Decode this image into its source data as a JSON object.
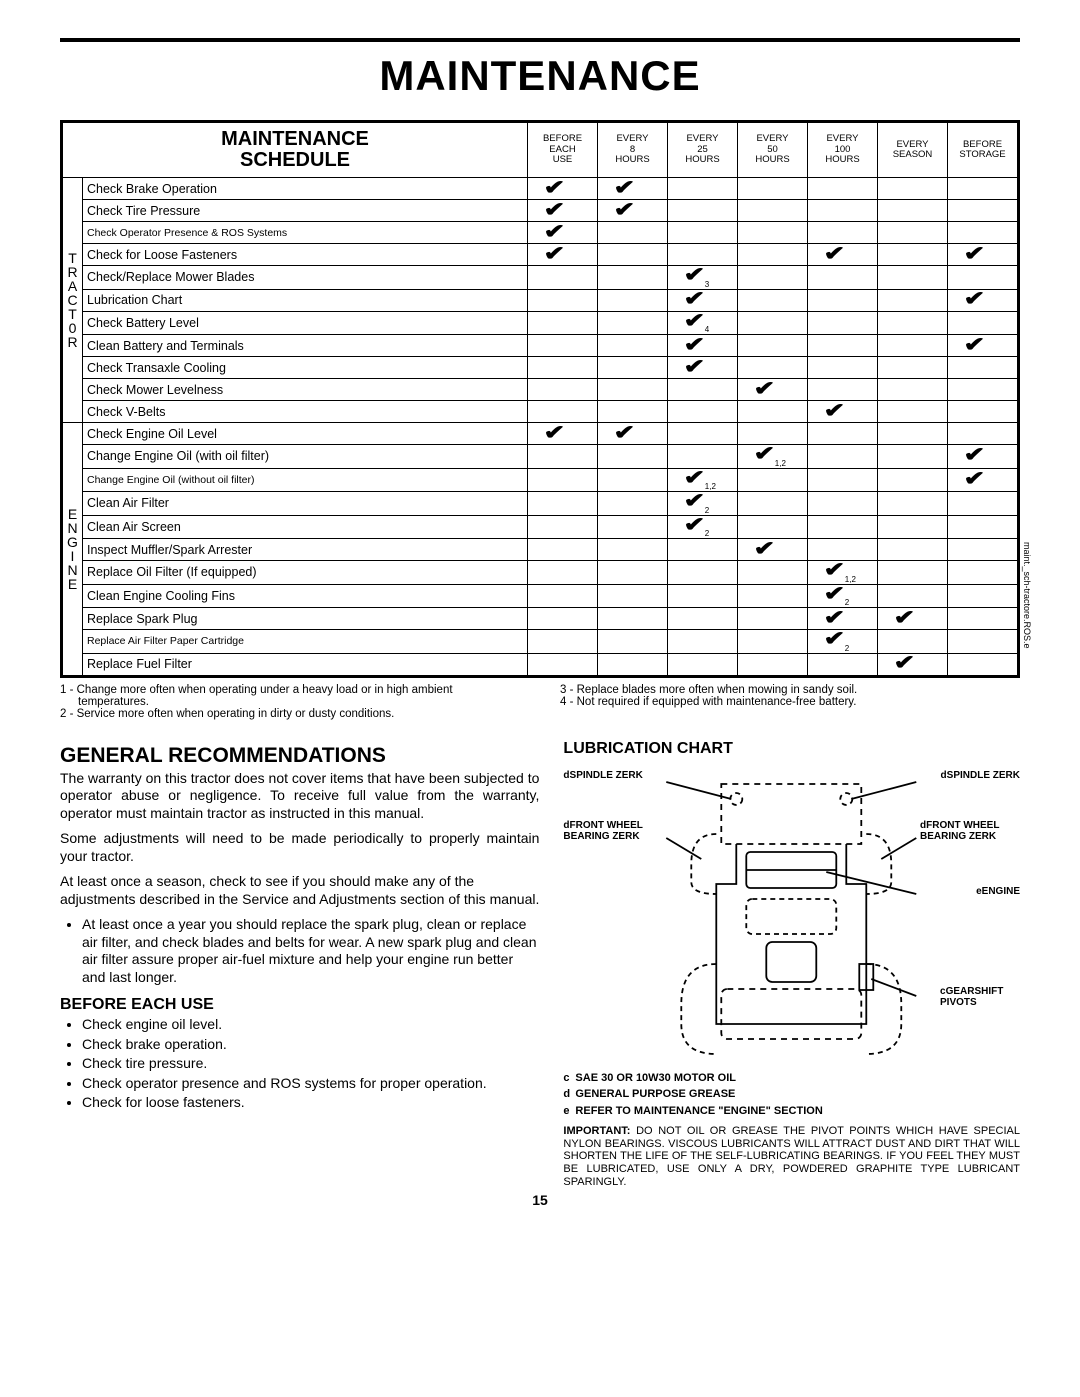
{
  "page": {
    "title": "MAINTENANCE",
    "number": "15"
  },
  "schedule": {
    "heading_l1": "MAINTENANCE",
    "heading_l2": "SCHEDULE",
    "columns": [
      "BEFORE\nEACH\nUSE",
      "EVERY\n8\nHOURS",
      "EVERY\n25\nHOURS",
      "EVERY\n50\nHOURS",
      "EVERY\n100\nHOURS",
      "EVERY\nSEASON",
      "BEFORE\nSTORAGE"
    ],
    "groups": [
      {
        "label": "T\nR\nA\nC\nT\n0\nR",
        "rows": [
          {
            "item": "Check Brake Operation",
            "marks": [
              0,
              1
            ]
          },
          {
            "item": "Check Tire Pressure",
            "marks": [
              0,
              1
            ]
          },
          {
            "item": "Check Operator Presence & ROS Systems",
            "small": true,
            "marks": [
              0
            ]
          },
          {
            "item": "Check for Loose Fasteners",
            "marks": [
              0,
              4,
              6
            ]
          },
          {
            "item": "Check/Replace Mower Blades",
            "marks": [
              2
            ],
            "notes": {
              "2": "3"
            }
          },
          {
            "item": "Lubrication Chart",
            "marks": [
              2,
              6
            ]
          },
          {
            "item": "Check Battery Level",
            "marks": [
              2
            ],
            "notes": {
              "2": "4"
            }
          },
          {
            "item": "Clean Battery and Terminals",
            "marks": [
              2,
              6
            ]
          },
          {
            "item": "Check Transaxle Cooling",
            "marks": [
              2
            ]
          },
          {
            "item": "Check Mower Levelness",
            "marks": [
              3
            ]
          },
          {
            "item": "Check V-Belts",
            "marks": [
              4
            ]
          }
        ]
      },
      {
        "label": "E\nN\nG\nI\nN\nE",
        "rows": [
          {
            "item": "Check Engine Oil Level",
            "marks": [
              0,
              1
            ]
          },
          {
            "item": "Change Engine Oil (with oil filter)",
            "marks": [
              3,
              6
            ],
            "notes": {
              "3": "1,2"
            }
          },
          {
            "item": "Change Engine Oil (without oil filter)",
            "small": true,
            "marks": [
              2,
              6
            ],
            "notes": {
              "2": "1,2"
            }
          },
          {
            "item": "Clean Air Filter",
            "marks": [
              2
            ],
            "notes": {
              "2": "2"
            }
          },
          {
            "item": "Clean Air Screen",
            "marks": [
              2
            ],
            "notes": {
              "2": "2"
            }
          },
          {
            "item": "Inspect Muffler/Spark Arrester",
            "marks": [
              3
            ]
          },
          {
            "item": "Replace Oil Filter (If equipped)",
            "marks": [
              4
            ],
            "notes": {
              "4": "1,2"
            }
          },
          {
            "item": "Clean Engine Cooling Fins",
            "marks": [
              4
            ],
            "notes": {
              "4": "2"
            }
          },
          {
            "item": "Replace Spark Plug",
            "marks": [
              4,
              5
            ]
          },
          {
            "item": "Replace Air Filter Paper Cartridge",
            "small": true,
            "marks": [
              4
            ],
            "notes": {
              "4": "2"
            }
          },
          {
            "item": "Replace Fuel Filter",
            "marks": [
              5
            ]
          }
        ]
      }
    ],
    "side_text": "maint._sch-tractore.ROS.e"
  },
  "footnotes": {
    "left": [
      "1 - Change more often when operating under a heavy load or in high ambient temperatures.",
      "2 - Service more often when operating in dirty or dusty conditions."
    ],
    "right": [
      "3 - Replace blades more often when mowing in sandy soil.",
      "4 - Not required if equipped with maintenance-free battery."
    ]
  },
  "general": {
    "heading": "GENERAL RECOMMENDATIONS",
    "p1": "The warranty on this tractor does not cover items that have been subjected to operator abuse or negligence. To receive full value from the warranty, operator must maintain tractor as instructed in this manual.",
    "p2": "Some adjustments will need to be made periodically to properly maintain your tractor.",
    "p3": "At least once a season, check to see if you should make any of the adjustments described in the Service and Adjustments section of this manual.",
    "bullet1": "At least once a year you should replace the spark plug, clean or replace air filter, and check blades and belts for wear.  A new spark plug and clean air filter assure proper air-fuel mixture and help your engine run better and last longer."
  },
  "before_each": {
    "heading": "BEFORE EACH USE",
    "items": [
      "Check engine oil level.",
      "Check brake operation.",
      "Check tire pressure.",
      "Check operator presence and ROS systems for proper operation.",
      "Check for loose fasteners."
    ]
  },
  "lubrication": {
    "heading": "LUBRICATION CHART",
    "labels": {
      "spindle_l": "SPINDLE ZERK",
      "spindle_r": "SPINDLE ZERK",
      "front_wheel_l": "FRONT WHEEL BEARING  ZERK",
      "front_wheel_r": "FRONT WHEEL BEARING  ZERK",
      "engine": "ENGINE",
      "gearshift": "GEARSHIFT PIVOTS"
    },
    "legend": [
      {
        "sym": "c",
        "text": "SAE 30 OR 10W30 MOTOR OIL"
      },
      {
        "sym": "d",
        "text": "GENERAL PURPOSE GREASE"
      },
      {
        "sym": "e",
        "text": "REFER TO MAINTENANCE \"ENGINE\"  SECTION"
      }
    ],
    "important_label": "IMPORTANT:",
    "important": "DO NOT OIL OR GREASE THE PIVOT POINTS WHICH HAVE SPECIAL NYLON BEARINGS.  VISCOUS LUBRICANTS WILL ATTRACT DUST AND DIRT THAT WILL SHORTEN THE LIFE OF THE SELF-LUBRICATING BEARINGS.  IF YOU FEEL THEY MUST BE LUBRICATED, USE ONLY A DRY, POWDERED GRAPHITE TYPE LUBRICANT SPARINGLY."
  }
}
